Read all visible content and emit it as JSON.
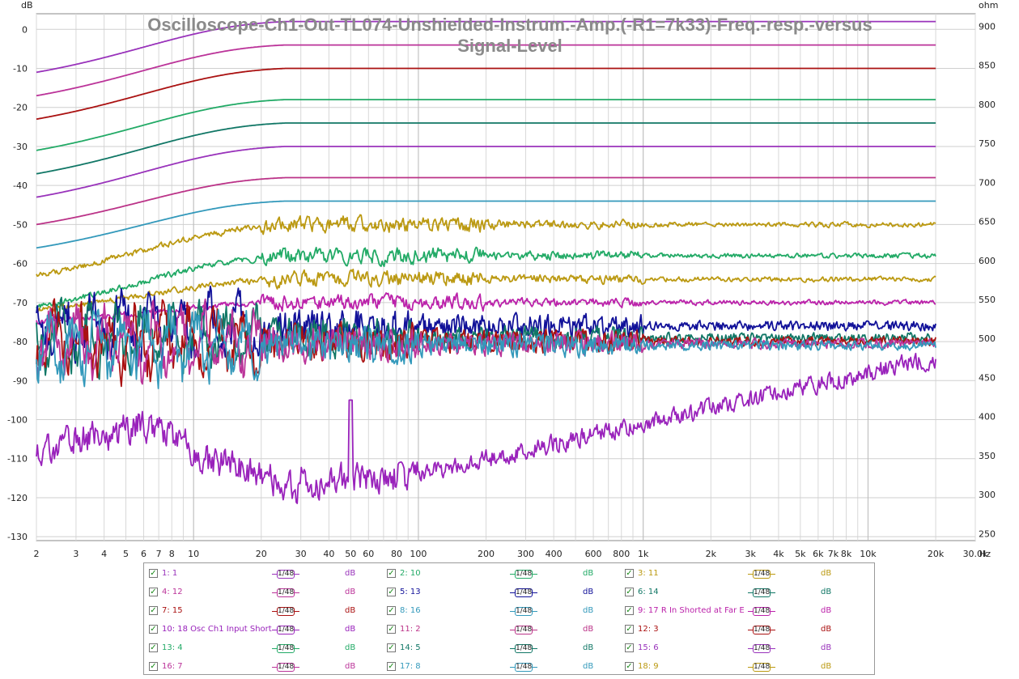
{
  "chart_data": {
    "type": "line",
    "title": "Oscilloscope-Ch1-Out-TL074-Unshielded-Instrum.-Amp.(-R1=7k33)-Freq.-resp.-versus Signal-Level",
    "title_lines": [
      "Oscilloscope-Ch1-Out-TL074-Unshielded-Instrum.-Amp.(-R1=7k33)-Freq.-resp.-versus",
      "Signal-Level"
    ],
    "ylabel_left": "dB",
    "ylabel_right": "ohm",
    "xlabel": "Hz",
    "x_scale": "log",
    "xlim": [
      2,
      30000
    ],
    "ylim": [
      -131,
      4
    ],
    "ylim_right": [
      241,
      916
    ],
    "x_tick_values": [
      2,
      3,
      4,
      5,
      6,
      7,
      8,
      10,
      20,
      30,
      40,
      50,
      60,
      80,
      100,
      200,
      300,
      400,
      600,
      800,
      1000,
      2000,
      3000,
      4000,
      5000,
      6000,
      7000,
      8000,
      10000,
      20000,
      30000
    ],
    "x_tick_labels": [
      "2",
      "3",
      "4",
      "5",
      "6",
      "7",
      "8",
      "10",
      "20",
      "30",
      "40",
      "50",
      "60",
      "80",
      "100",
      "200",
      "300",
      "400",
      "600",
      "800",
      "1k",
      "2k",
      "3k",
      "4k",
      "5k",
      "6k",
      "7k",
      "8k",
      "10k",
      "20k",
      "30.0k"
    ],
    "y_tick_values": [
      0,
      -10,
      -20,
      -30,
      -40,
      -50,
      -60,
      -70,
      -80,
      -90,
      -100,
      -110,
      -120,
      -130
    ],
    "y_tick_labels": [
      "0",
      "-10",
      "-20",
      "-30",
      "-40",
      "-50",
      "-60",
      "-70",
      "-80",
      "-90",
      "-100",
      "-110",
      "-120",
      "-130"
    ],
    "y_right_tick_values": [
      900,
      850,
      800,
      750,
      700,
      650,
      600,
      550,
      500,
      450,
      400,
      350,
      300,
      250
    ],
    "y_right_tick_labels": [
      "900",
      "850",
      "800",
      "750",
      "700",
      "650",
      "600",
      "550",
      "500",
      "450",
      "400",
      "350",
      "300",
      "250"
    ],
    "grid": true,
    "legend_position": "bottom",
    "series": [
      {
        "name": "1: 1",
        "color": "#9933bb",
        "kind": "smooth",
        "level": 2,
        "low": -11
      },
      {
        "name": "4: 12",
        "color": "#bb3399",
        "kind": "smooth",
        "level": -4,
        "low": -17
      },
      {
        "name": "7: 15",
        "color": "#aa1111",
        "kind": "smooth",
        "level": -10,
        "low": -23
      },
      {
        "name": "2: 10",
        "color": "#22aa66",
        "kind": "smooth",
        "level": -18,
        "low": -31
      },
      {
        "name": "6: 14",
        "color": "#117766",
        "kind": "smooth",
        "level": -24,
        "low": -37
      },
      {
        "name": "15: 6",
        "color": "#9933bb",
        "kind": "smooth",
        "level": -30,
        "low": -43
      },
      {
        "name": "11: 2",
        "color": "#bb3388",
        "kind": "smooth",
        "level": -38,
        "low": -50
      },
      {
        "name": "8: 16",
        "color": "#3399bb",
        "kind": "smooth",
        "level": -44,
        "low": -56
      },
      {
        "name": "3: 11",
        "color": "#bb9911",
        "kind": "noisy1",
        "level": -50,
        "low": -63
      },
      {
        "name": "13: 4",
        "color": "#22aa66",
        "kind": "noisy2",
        "level": -58,
        "low": -71
      },
      {
        "name": "18: 9",
        "color": "#bb9911",
        "kind": "noisy3",
        "level": -64,
        "low": -72
      },
      {
        "name": "9: 17 R In Shorted at Far E",
        "color": "#bb22aa",
        "kind": "noisy4",
        "level": -70,
        "low": -75
      },
      {
        "name": "5: 13",
        "color": "#111199",
        "kind": "noise",
        "level": -76,
        "low": -75
      },
      {
        "name": "14: 5",
        "color": "#117766",
        "kind": "noise",
        "level": -79,
        "low": -76
      },
      {
        "name": "12: 3",
        "color": "#aa1111",
        "kind": "noise",
        "level": -80,
        "low": -77
      },
      {
        "name": "16: 7",
        "color": "#bb3399",
        "kind": "noise",
        "level": -80.5,
        "low": -78
      },
      {
        "name": "17: 8",
        "color": "#3399bb",
        "kind": "noise",
        "level": -81,
        "low": -74
      },
      {
        "name": "10: 18 Osc Ch1 Input Short",
        "color": "#9922bb",
        "kind": "floor",
        "level": -107,
        "low": -107
      }
    ]
  },
  "legend": {
    "box_label": "1/48",
    "unit": "dB",
    "check": "✓",
    "rows": [
      [
        {
          "name": "1: 1",
          "color": "#9933bb"
        },
        {
          "name": "2: 10",
          "color": "#22aa66"
        },
        {
          "name": "3: 11",
          "color": "#bb9911"
        }
      ],
      [
        {
          "name": "4: 12",
          "color": "#bb3399"
        },
        {
          "name": "5: 13",
          "color": "#111199"
        },
        {
          "name": "6: 14",
          "color": "#117766"
        }
      ],
      [
        {
          "name": "7: 15",
          "color": "#aa1111"
        },
        {
          "name": "8: 16",
          "color": "#3399bb"
        },
        {
          "name": "9: 17 R In Shorted at Far E",
          "color": "#bb22aa"
        }
      ],
      [
        {
          "name": "10: 18 Osc Ch1 Input Short",
          "color": "#9922bb"
        },
        {
          "name": "11: 2",
          "color": "#bb3388"
        },
        {
          "name": "12: 3",
          "color": "#aa1111"
        }
      ],
      [
        {
          "name": "13: 4",
          "color": "#22aa66"
        },
        {
          "name": "14: 5",
          "color": "#117766"
        },
        {
          "name": "15: 6",
          "color": "#9933bb"
        }
      ],
      [
        {
          "name": "16: 7",
          "color": "#bb3399"
        },
        {
          "name": "17: 8",
          "color": "#3399bb"
        },
        {
          "name": "18: 9",
          "color": "#bb9911"
        }
      ]
    ]
  }
}
